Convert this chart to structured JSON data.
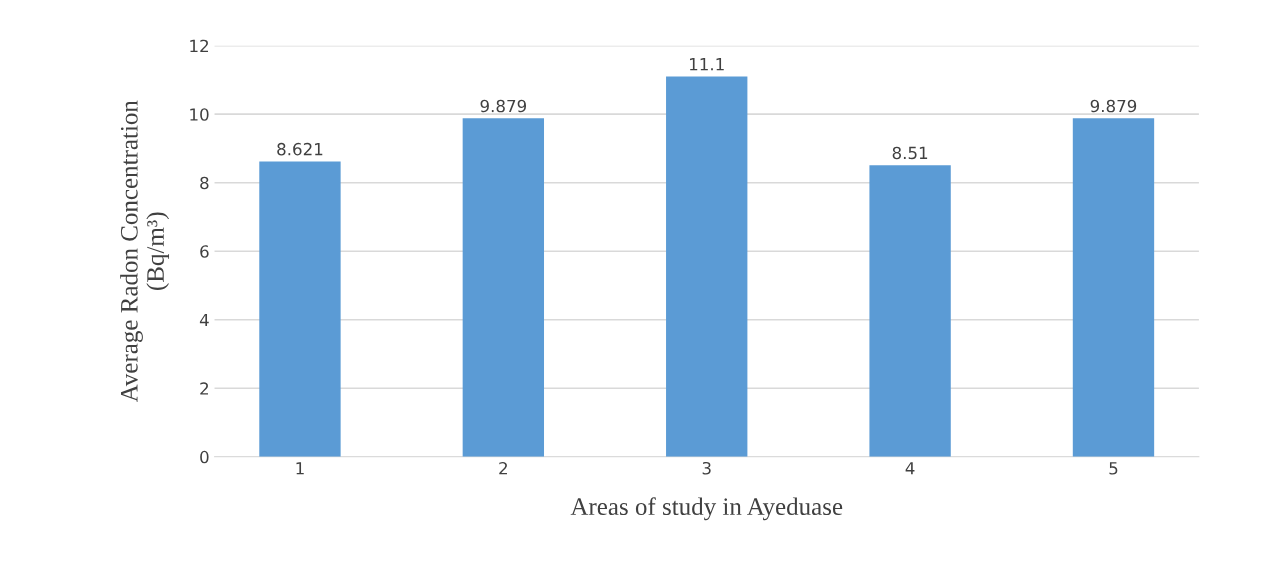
{
  "chart_data": {
    "type": "bar",
    "xlabel": "Areas of study in Ayeduase",
    "ylabel": "Average Radon Concentration\n(Bq/m³)",
    "categories": [
      "1",
      "2",
      "3",
      "4",
      "5"
    ],
    "values": [
      8.621,
      9.879,
      11.1,
      8.51,
      9.879
    ],
    "color": "#5b9bd5",
    "ylim": [
      0,
      12
    ],
    "yticks": [
      0,
      2,
      4,
      6,
      8,
      10,
      12
    ],
    "grid": "y",
    "data_labels": true
  }
}
